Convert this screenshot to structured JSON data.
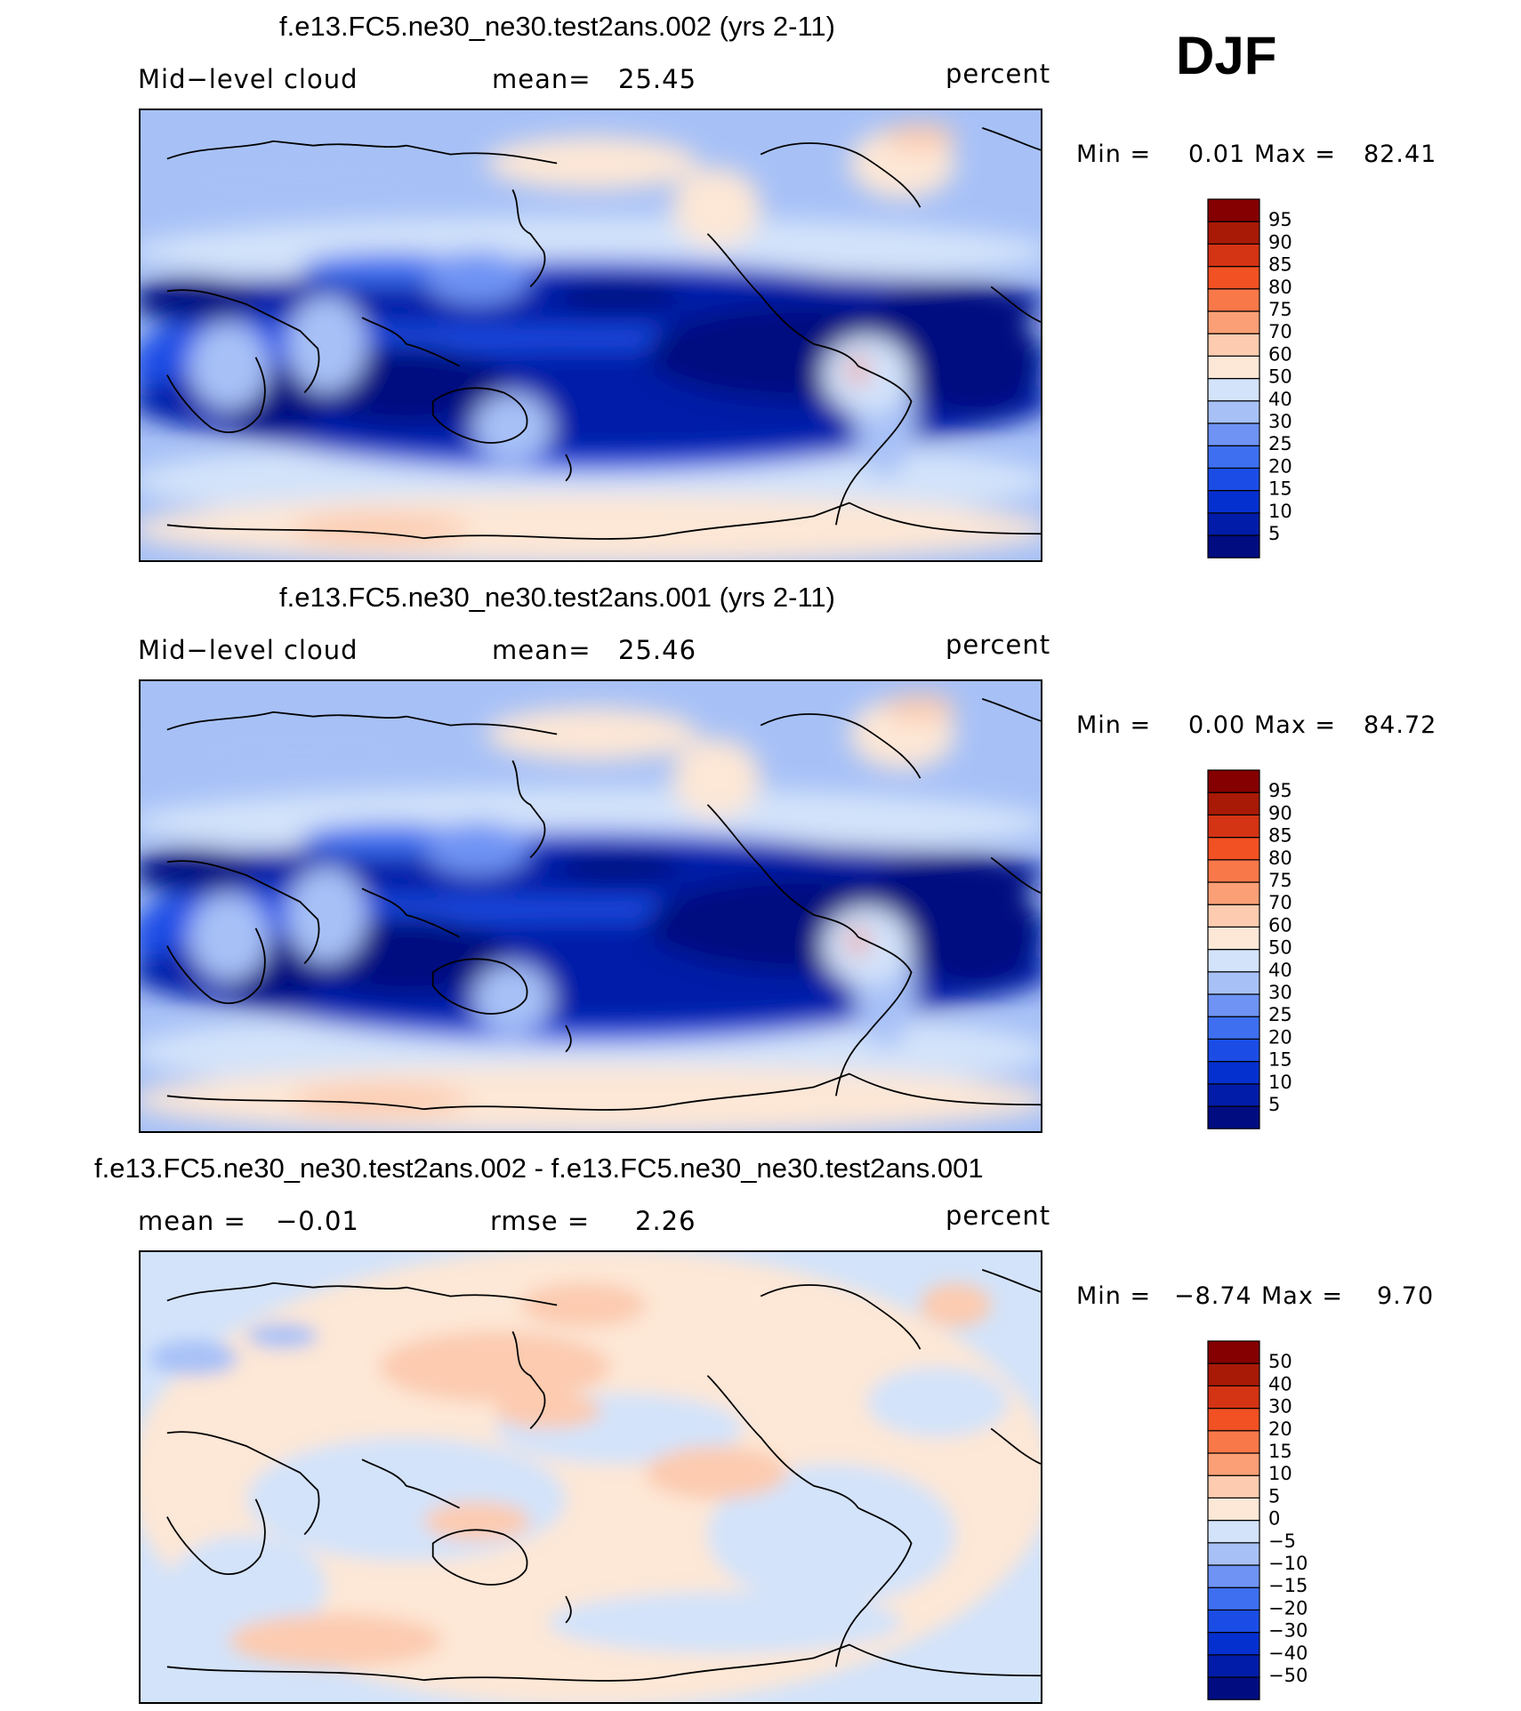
{
  "season": "DJF",
  "palettes": {
    "cloud": [
      "#000c80",
      "#001ca8",
      "#0530d0",
      "#1b4de6",
      "#3d6ff0",
      "#6e93f4",
      "#a7c1f7",
      "#d3e3fa",
      "#fde7d6",
      "#fccbb0",
      "#fb9f76",
      "#f97849",
      "#f15123",
      "#d43314",
      "#a81906",
      "#850000"
    ],
    "diff": [
      "#000c80",
      "#001ca8",
      "#0530d0",
      "#1b4de6",
      "#3d6ff0",
      "#6e93f4",
      "#a7c1f7",
      "#d3e3fa",
      "#fde7d6",
      "#fccbb0",
      "#fb9f76",
      "#f97849",
      "#f15123",
      "#d43314",
      "#a81906",
      "#850000"
    ]
  },
  "chart_data": [
    {
      "type": "heatmap",
      "title": "f.e13.FC5.ne30_ne30.test2ans.002 (yrs 2-11)",
      "variable": "Mid−level cloud",
      "stat_label": "mean=",
      "stat_value": "25.45",
      "units": "percent",
      "min_label": "Min =",
      "min_value": "0.01",
      "max_label": "Max =",
      "max_value": "82.41",
      "levels": [
        "5",
        "10",
        "15",
        "20",
        "25",
        "30",
        "40",
        "50",
        "60",
        "70",
        "75",
        "80",
        "85",
        "90",
        "95"
      ],
      "palette": "cloud",
      "global_mean": 25.45
    },
    {
      "type": "heatmap",
      "title": "f.e13.FC5.ne30_ne30.test2ans.001 (yrs 2-11)",
      "variable": "Mid−level cloud",
      "stat_label": "mean=",
      "stat_value": "25.46",
      "units": "percent",
      "min_label": "Min =",
      "min_value": "0.00",
      "max_label": "Max =",
      "max_value": "84.72",
      "levels": [
        "5",
        "10",
        "15",
        "20",
        "25",
        "30",
        "40",
        "50",
        "60",
        "70",
        "75",
        "80",
        "85",
        "90",
        "95"
      ],
      "palette": "cloud",
      "global_mean": 25.46
    },
    {
      "type": "heatmap",
      "title": "f.e13.FC5.ne30_ne30.test2ans.002 - f.e13.FC5.ne30_ne30.test2ans.001",
      "variable": "",
      "stat_label": "mean =",
      "stat_value": "−0.01",
      "stat2_label": "rmse =",
      "stat2_value": "2.26",
      "units": "percent",
      "min_label": "Min =",
      "min_value": "−8.74",
      "max_label": "Max =",
      "max_value": "9.70",
      "levels": [
        "−50",
        "−40",
        "−30",
        "−20",
        "−15",
        "−10",
        "−5",
        "0",
        "5",
        "10",
        "15",
        "20",
        "30",
        "40",
        "50"
      ],
      "palette": "diff",
      "global_mean": -0.01
    }
  ]
}
